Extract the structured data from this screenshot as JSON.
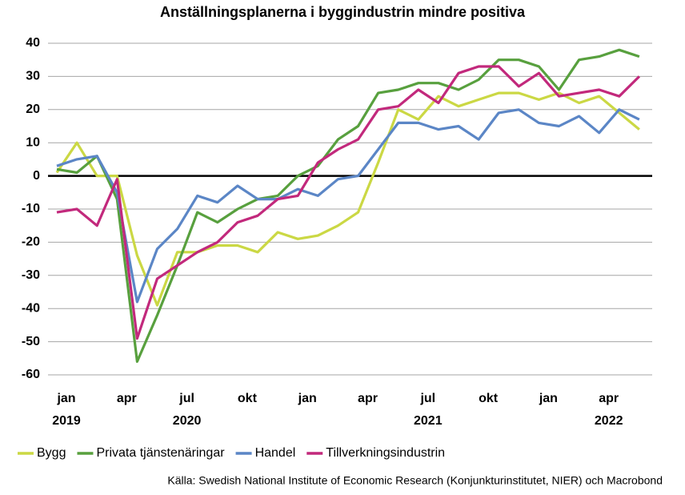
{
  "chart_data": {
    "type": "line",
    "title": "Anställningsplanerna i byggindustrin mindre positiva",
    "source": "Källa: Swedish National Institute of Economic Research (Konjunkturinstitutet, NIER) och Macrobond",
    "categories": [
      "jan",
      null,
      null,
      "apr",
      null,
      null,
      "jul",
      null,
      null,
      "okt",
      null,
      null,
      "jan",
      null,
      null,
      "apr",
      null,
      null,
      "jul",
      null,
      null,
      "okt",
      null,
      null,
      "jan",
      null,
      null,
      "apr",
      null,
      null
    ],
    "years": [
      "2019",
      null,
      null,
      null,
      null,
      null,
      "2020",
      null,
      null,
      null,
      null,
      null,
      null,
      null,
      null,
      null,
      null,
      null,
      "2021",
      null,
      null,
      null,
      null,
      null,
      null,
      null,
      null,
      "2022",
      null,
      null
    ],
    "ylim": [
      -60,
      40
    ],
    "yticks": [
      -60,
      -50,
      -40,
      -30,
      -20,
      -10,
      0,
      10,
      20,
      30,
      40
    ],
    "grid": true,
    "series": [
      {
        "name": "Bygg",
        "color": "#cbd844",
        "values": [
          1,
          10,
          0,
          0,
          -24,
          -39,
          -23,
          -23,
          -21,
          -21,
          -23,
          -17,
          -19,
          -18,
          -15,
          -11,
          4,
          20,
          17,
          24,
          21,
          23,
          25,
          25,
          23,
          25,
          22,
          24,
          19,
          14
        ]
      },
      {
        "name": "Privata tjänstenäringar",
        "color": "#58a03e",
        "values": [
          2,
          1,
          6,
          -7,
          -56,
          -42,
          -27,
          -11,
          -14,
          -10,
          -7,
          -6,
          0,
          3,
          11,
          15,
          25,
          26,
          28,
          28,
          26,
          29,
          35,
          35,
          33,
          26,
          35,
          36,
          38,
          36
        ]
      },
      {
        "name": "Handel",
        "color": "#5b86c6",
        "values": [
          3,
          5,
          6,
          -5,
          -38,
          -22,
          -16,
          -6,
          -8,
          -3,
          -7,
          -7,
          -4,
          -6,
          -1,
          0,
          8,
          16,
          16,
          14,
          15,
          11,
          19,
          20,
          16,
          15,
          18,
          13,
          20,
          17
        ]
      },
      {
        "name": "Tillverkningsindustrin",
        "color": "#c2297c",
        "values": [
          -11,
          -10,
          -15,
          -1,
          -49,
          -31,
          -27,
          -23,
          -20,
          -14,
          -12,
          -7,
          -6,
          4,
          8,
          11,
          20,
          21,
          26,
          22,
          31,
          33,
          33,
          27,
          31,
          24,
          25,
          26,
          24,
          30
        ]
      }
    ]
  }
}
